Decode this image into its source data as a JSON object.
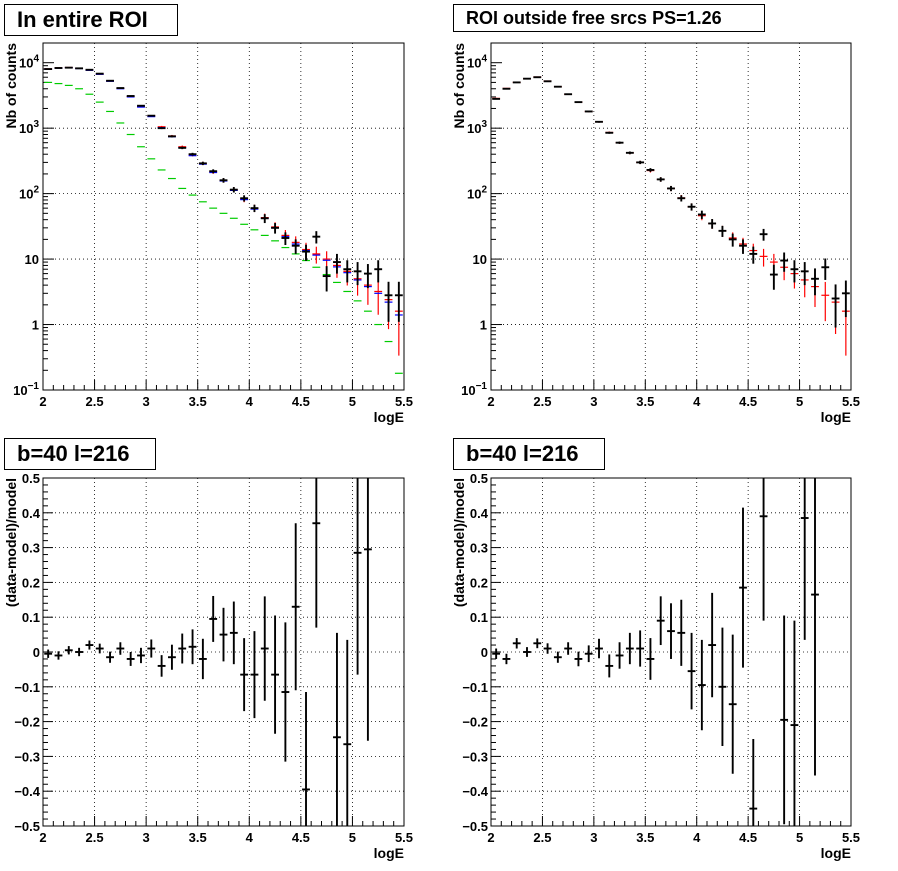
{
  "panels": [
    {
      "title": "In entire ROI"
    },
    {
      "title": "ROI outside free srcs PS=1.26"
    },
    {
      "title": "b=40 l=216"
    },
    {
      "title": "b=40 l=216"
    }
  ],
  "colors": {
    "data": "#000000",
    "model_total": "#ff0000",
    "model_alt": "#0000ff",
    "model_component": "#00cc00"
  },
  "chart_data": [
    {
      "type": "scatter",
      "title": "In entire ROI",
      "xlabel": "logE",
      "ylabel": "Nb of counts",
      "xlim": [
        2,
        5.5
      ],
      "ylim": [
        0.1,
        20000
      ],
      "yscale": "log",
      "grid": true,
      "x_ticks": [
        "2",
        "2.5",
        "3",
        "3.5",
        "4",
        "4.5",
        "5",
        "5.5"
      ],
      "y_ticks": [
        "10^-1",
        "1",
        "10",
        "10^2",
        "10^3",
        "10^4"
      ],
      "x": [
        2.05,
        2.15,
        2.25,
        2.35,
        2.45,
        2.55,
        2.65,
        2.75,
        2.85,
        2.95,
        3.05,
        3.15,
        3.25,
        3.35,
        3.45,
        3.55,
        3.65,
        3.75,
        3.85,
        3.95,
        4.05,
        4.15,
        4.25,
        4.35,
        4.45,
        4.55,
        4.65,
        4.75,
        4.85,
        4.95,
        5.05,
        5.15,
        5.25,
        5.35,
        5.45
      ],
      "series": [
        {
          "role": "data",
          "color": "#000000",
          "values": [
            8000,
            8300,
            8400,
            8200,
            7800,
            6800,
            5300,
            4100,
            3100,
            2200,
            1550,
            1000,
            750,
            500,
            400,
            290,
            220,
            160,
            115,
            85,
            60,
            42,
            30,
            21,
            16,
            13,
            22,
            5.5,
            9,
            7,
            6.5,
            6,
            7,
            2.8,
            2.8
          ],
          "errors": [
            89,
            91,
            92,
            91,
            88,
            82,
            73,
            64,
            56,
            47,
            39,
            32,
            27,
            22,
            20,
            17,
            15,
            13,
            11,
            9.2,
            7.7,
            6.5,
            5.5,
            4.6,
            4,
            3.6,
            4.7,
            2.3,
            3,
            2.6,
            2.5,
            2.4,
            2.6,
            1.7,
            1.7
          ]
        },
        {
          "role": "model_total",
          "color": "#ff0000",
          "values": [
            8050,
            8350,
            8450,
            8200,
            7700,
            6700,
            5250,
            4050,
            3050,
            2150,
            1550,
            1050,
            760,
            520,
            390,
            290,
            215,
            160,
            115,
            83,
            60,
            43,
            31,
            23,
            18,
            14,
            12,
            10,
            8,
            6.5,
            5,
            4,
            3.2,
            2.4,
            1.6
          ]
        },
        {
          "role": "model_alt",
          "color": "#0000ff",
          "values": [
            7950,
            8250,
            8400,
            8150,
            7650,
            6650,
            5200,
            4000,
            3000,
            2100,
            1500,
            1020,
            740,
            505,
            380,
            282,
            210,
            156,
            112,
            81,
            58,
            42,
            30,
            22,
            17,
            13.5,
            11.5,
            9.6,
            7.6,
            6.2,
            4.8,
            3.8,
            3,
            2.2,
            1.4
          ]
        },
        {
          "role": "model_component",
          "color": "#00cc00",
          "values": [
            5000,
            4800,
            4500,
            4000,
            3300,
            2500,
            1800,
            1200,
            800,
            520,
            340,
            230,
            170,
            120,
            95,
            75,
            60,
            50,
            42,
            34,
            28,
            23,
            19,
            15,
            12,
            9.5,
            7.5,
            5.8,
            4.4,
            3.2,
            2.3,
            1.6,
            1.0,
            0.55,
            0.18
          ]
        }
      ]
    },
    {
      "type": "scatter",
      "title": "ROI outside free srcs PS=1.26",
      "xlabel": "logE",
      "ylabel": "Nb of counts",
      "xlim": [
        2,
        5.5
      ],
      "ylim": [
        0.1,
        20000
      ],
      "yscale": "log",
      "grid": true,
      "x_ticks": [
        "2",
        "2.5",
        "3",
        "3.5",
        "4",
        "4.5",
        "5",
        "5.5"
      ],
      "y_ticks": [
        "10^-1",
        "1",
        "10",
        "10^2",
        "10^3",
        "10^4"
      ],
      "x": [
        2.05,
        2.15,
        2.25,
        2.35,
        2.45,
        2.55,
        2.65,
        2.75,
        2.85,
        2.95,
        3.05,
        3.15,
        3.25,
        3.35,
        3.45,
        3.55,
        3.65,
        3.75,
        3.85,
        3.95,
        4.05,
        4.15,
        4.25,
        4.35,
        4.45,
        4.55,
        4.65,
        4.75,
        4.85,
        4.95,
        5.05,
        5.15,
        5.25,
        5.35,
        5.45
      ],
      "series": [
        {
          "role": "data",
          "color": "#000000",
          "values": [
            2800,
            4000,
            5000,
            5700,
            6000,
            5200,
            4300,
            3300,
            2500,
            1800,
            1250,
            850,
            600,
            420,
            300,
            230,
            165,
            120,
            85,
            63,
            48,
            35,
            27,
            20,
            16,
            12,
            24,
            5.8,
            9.5,
            7,
            6.5,
            5,
            7.5,
            2.5,
            3
          ],
          "errors": [
            53,
            63,
            71,
            75,
            77,
            72,
            66,
            57,
            50,
            42,
            35,
            29,
            24,
            20,
            17,
            15,
            13,
            11,
            9.2,
            7.9,
            6.9,
            5.9,
            5.2,
            4.5,
            4,
            3.5,
            4.9,
            2.4,
            3.1,
            2.6,
            2.5,
            2.2,
            2.7,
            1.6,
            1.7
          ]
        },
        {
          "role": "model_total",
          "color": "#ff0000",
          "values": [
            2850,
            4050,
            5000,
            5700,
            6050,
            5250,
            4300,
            3300,
            2500,
            1800,
            1250,
            860,
            600,
            420,
            300,
            225,
            165,
            120,
            86,
            63,
            46,
            35,
            27,
            21,
            17,
            13.5,
            11,
            9,
            7.5,
            6,
            4.8,
            3.8,
            2.8,
            2.2,
            1.6
          ]
        }
      ]
    },
    {
      "type": "scatter",
      "title": "b=40 l=216",
      "xlabel": "logE",
      "ylabel": "(data-model)/model",
      "xlim": [
        2,
        5.5
      ],
      "ylim": [
        -0.5,
        0.5
      ],
      "grid": true,
      "x_ticks": [
        "2",
        "2.5",
        "3",
        "3.5",
        "4",
        "4.5",
        "5",
        "5.5"
      ],
      "y_ticks": [
        "-0.5",
        "-0.4",
        "-0.3",
        "-0.2",
        "-0.1",
        "0",
        "0.1",
        "0.2",
        "0.3",
        "0.4",
        "0.5"
      ],
      "x": [
        2.05,
        2.15,
        2.25,
        2.35,
        2.45,
        2.55,
        2.65,
        2.75,
        2.85,
        2.95,
        3.05,
        3.15,
        3.25,
        3.35,
        3.45,
        3.55,
        3.65,
        3.75,
        3.85,
        3.95,
        4.05,
        4.15,
        4.25,
        4.35,
        4.45,
        4.55,
        4.65,
        4.75,
        4.85,
        4.95,
        5.05,
        5.15
      ],
      "series": [
        {
          "role": "data",
          "color": "#000000",
          "values": [
            -0.005,
            -0.01,
            0.005,
            0.0,
            0.02,
            0.01,
            -0.015,
            0.01,
            -0.02,
            -0.01,
            0.01,
            -0.04,
            -0.015,
            0.01,
            0.015,
            -0.02,
            0.095,
            0.05,
            0.055,
            -0.065,
            -0.065,
            0.01,
            -0.065,
            -0.115,
            0.13,
            -0.395,
            0.37,
            null,
            -0.245,
            -0.265,
            0.285,
            0.295
          ],
          "errors": [
            0.012,
            0.012,
            0.012,
            0.012,
            0.013,
            0.014,
            0.016,
            0.018,
            0.02,
            0.022,
            0.026,
            0.031,
            0.036,
            0.043,
            0.05,
            0.058,
            0.066,
            0.077,
            0.09,
            0.105,
            0.125,
            0.15,
            0.17,
            0.2,
            0.24,
            0.28,
            0.3,
            0,
            0.3,
            0.3,
            0.35,
            0.55
          ]
        }
      ]
    },
    {
      "type": "scatter",
      "title": "b=40 l=216",
      "xlabel": "logE",
      "ylabel": "(data-model)/model",
      "xlim": [
        2,
        5.5
      ],
      "ylim": [
        -0.5,
        0.5
      ],
      "grid": true,
      "x_ticks": [
        "2",
        "2.5",
        "3",
        "3.5",
        "4",
        "4.5",
        "5",
        "5.5"
      ],
      "y_ticks": [
        "-0.5",
        "-0.4",
        "-0.3",
        "-0.2",
        "-0.1",
        "0",
        "0.1",
        "0.2",
        "0.3",
        "0.4",
        "0.5"
      ],
      "x": [
        2.05,
        2.15,
        2.25,
        2.35,
        2.45,
        2.55,
        2.65,
        2.75,
        2.85,
        2.95,
        3.05,
        3.15,
        3.25,
        3.35,
        3.45,
        3.55,
        3.65,
        3.75,
        3.85,
        3.95,
        4.05,
        4.15,
        4.25,
        4.35,
        4.45,
        4.55,
        4.65,
        4.75,
        4.85,
        4.95,
        5.05,
        5.15
      ],
      "series": [
        {
          "role": "data",
          "color": "#000000",
          "values": [
            -0.005,
            -0.02,
            0.025,
            0.0,
            0.025,
            0.01,
            -0.015,
            0.01,
            -0.02,
            -0.005,
            0.01,
            -0.04,
            -0.01,
            0.01,
            0.01,
            -0.02,
            0.09,
            0.06,
            0.055,
            -0.055,
            -0.095,
            0.02,
            -0.1,
            -0.15,
            0.185,
            -0.45,
            0.39,
            null,
            -0.195,
            -0.21,
            0.385,
            0.165
          ],
          "errors": [
            0.015,
            0.015,
            0.015,
            0.014,
            0.014,
            0.015,
            0.016,
            0.018,
            0.021,
            0.024,
            0.028,
            0.033,
            0.038,
            0.045,
            0.052,
            0.06,
            0.07,
            0.08,
            0.095,
            0.11,
            0.13,
            0.15,
            0.17,
            0.2,
            0.23,
            0.2,
            0.3,
            0,
            0.3,
            0.3,
            0.35,
            0.52
          ]
        }
      ]
    }
  ]
}
